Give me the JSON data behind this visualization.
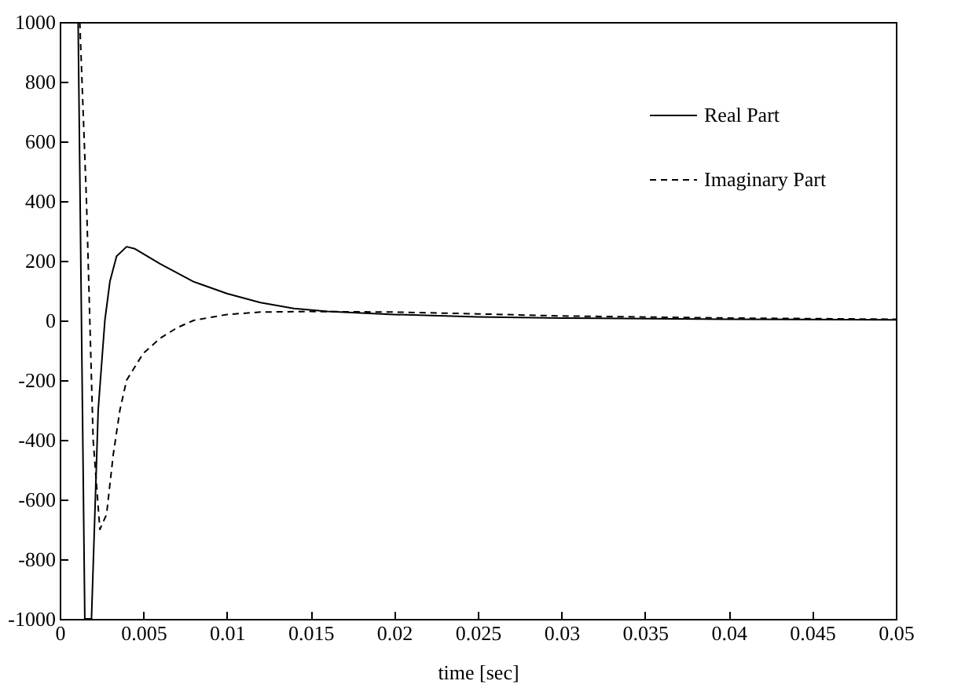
{
  "chart_data": {
    "type": "line",
    "xlabel": "time [sec]",
    "xlim": [
      0,
      0.05
    ],
    "xticks": [
      0,
      0.005,
      0.01,
      0.015,
      0.02,
      0.025,
      0.03,
      0.035,
      0.04,
      0.045,
      0.05
    ],
    "ylim": [
      -1000,
      1000
    ],
    "yticks": [
      -1000,
      -800,
      -600,
      -400,
      -200,
      0,
      200,
      400,
      600,
      800,
      1000
    ],
    "grid": false,
    "legend": "top right",
    "marker": "none",
    "series": [
      {
        "name": "Real Part",
        "color": "#000000",
        "line_style": "solid",
        "x": [
          0.0011,
          0.0015,
          0.0019,
          0.0023,
          0.0027,
          0.003,
          0.0034,
          0.004,
          0.0045,
          0.006,
          0.008,
          0.01,
          0.012,
          0.014,
          0.016,
          0.02,
          0.025,
          0.03,
          0.04,
          0.05
        ],
        "values": [
          1000,
          -1000,
          -1000,
          -300,
          0,
          130,
          215,
          247,
          240,
          190,
          130,
          90,
          60,
          40,
          30,
          20,
          12,
          8,
          4,
          2
        ]
      },
      {
        "name": "Imaginary Part",
        "color": "#000000",
        "line_style": "dashed",
        "x": [
          0.0012,
          0.0016,
          0.002,
          0.0024,
          0.0028,
          0.0032,
          0.0036,
          0.004,
          0.005,
          0.006,
          0.007,
          0.008,
          0.01,
          0.012,
          0.015,
          0.02,
          0.025,
          0.03,
          0.04,
          0.05
        ],
        "values": [
          1000,
          400,
          -400,
          -700,
          -650,
          -450,
          -300,
          -200,
          -110,
          -60,
          -25,
          0,
          20,
          28,
          30,
          28,
          22,
          15,
          8,
          4
        ]
      }
    ]
  }
}
